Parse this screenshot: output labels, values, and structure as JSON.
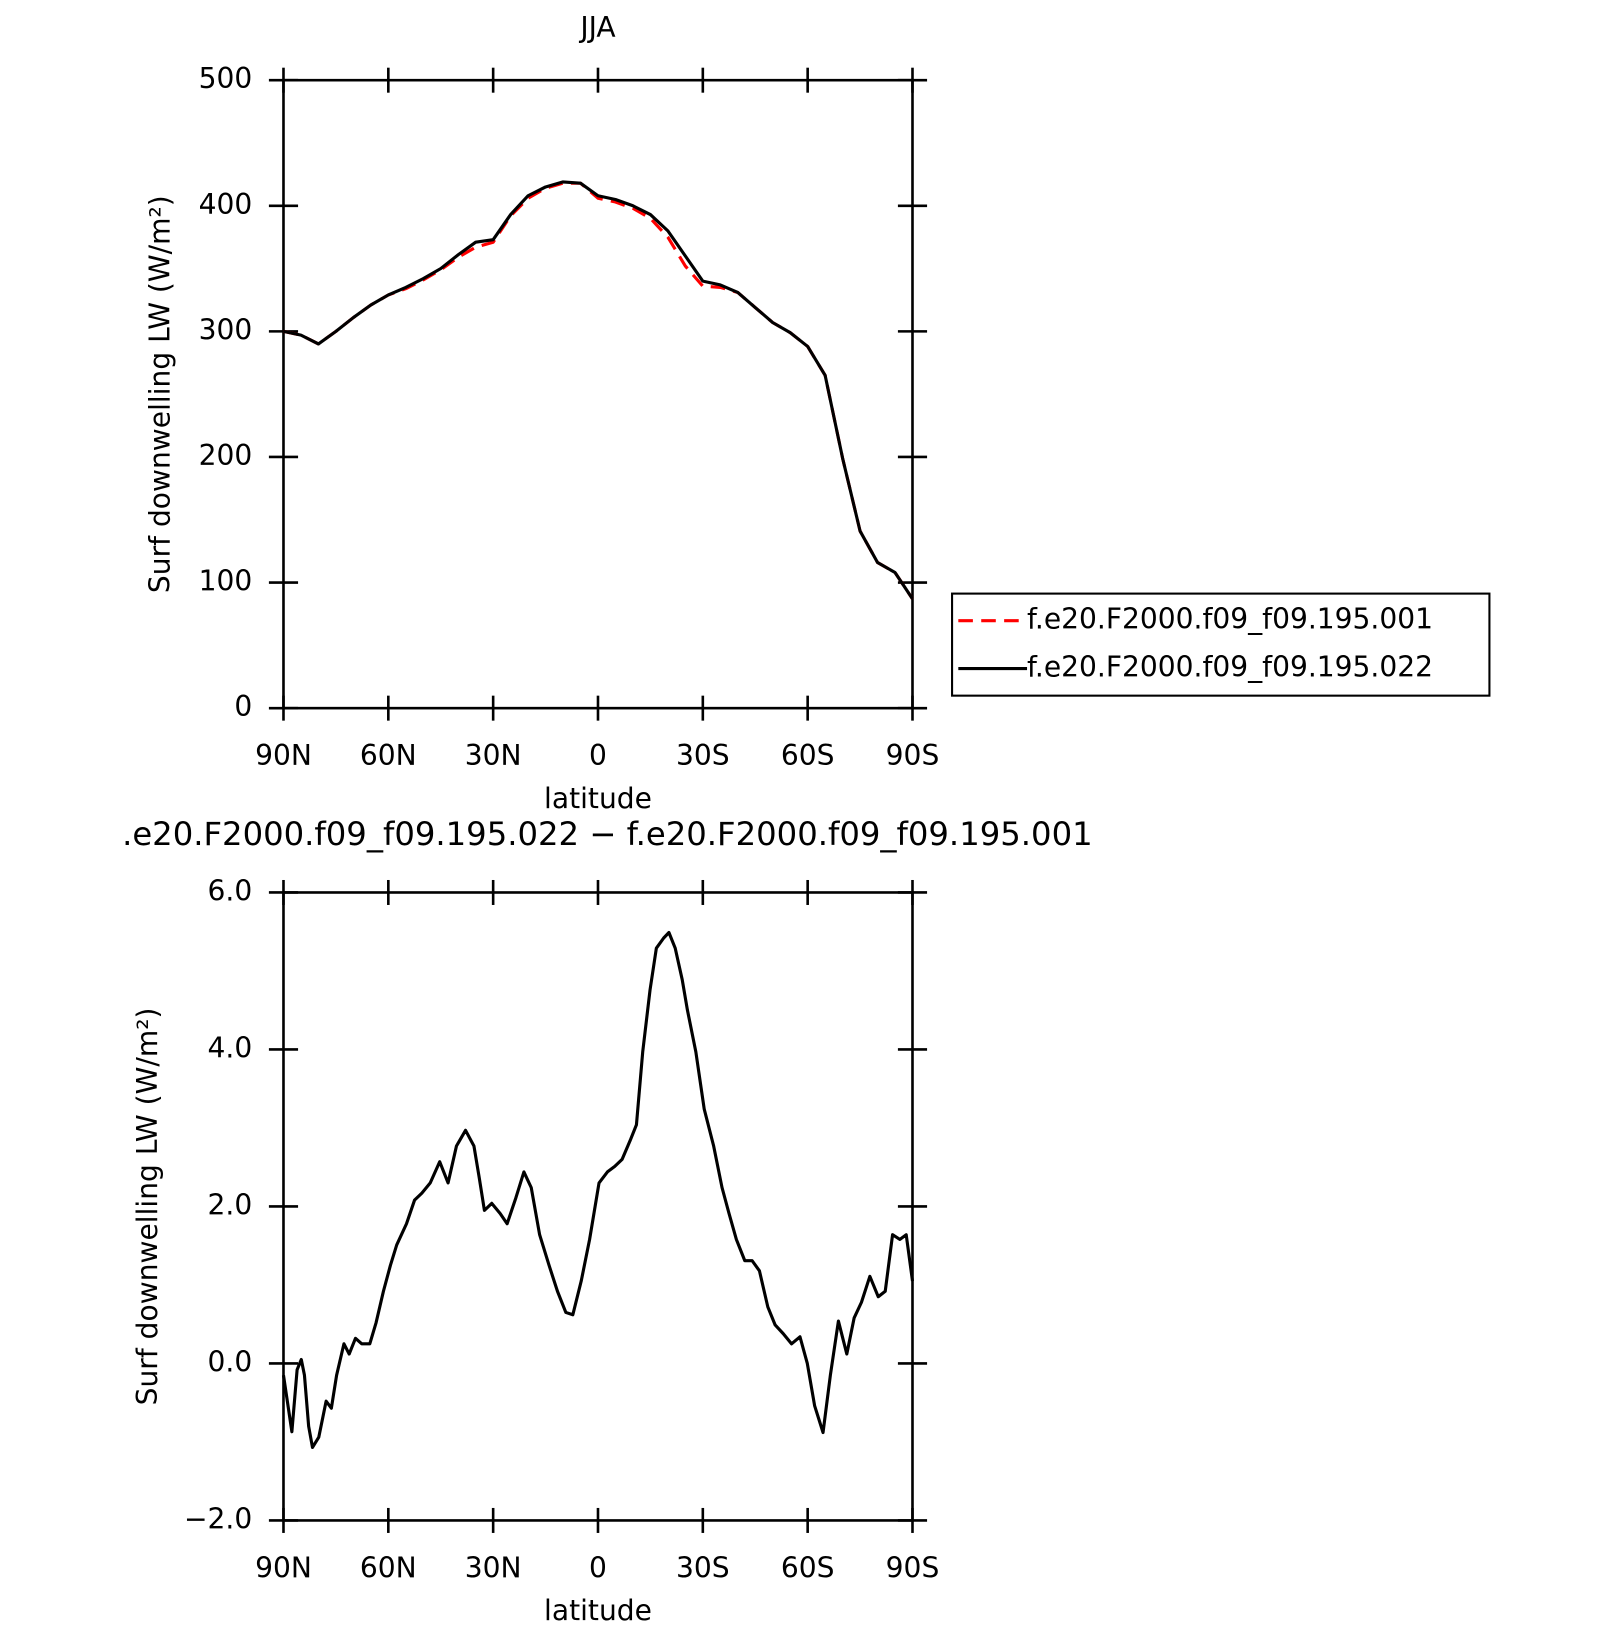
{
  "chart_data": [
    {
      "type": "line",
      "title": "JJA",
      "xlabel": "latitude",
      "ylabel": "Surf downwelling LW (W/m²)",
      "x": [
        90,
        85,
        80,
        75,
        70,
        65,
        60,
        55,
        50,
        45,
        40,
        35,
        30,
        25,
        20,
        15,
        10,
        5,
        0,
        -5,
        -10,
        -15,
        -20,
        -25,
        -30,
        -35,
        -40,
        -45,
        -50,
        -55,
        -60,
        -65,
        -70,
        -75,
        -80,
        -85,
        -90
      ],
      "series": [
        {
          "name": "f.e20.F2000.f09_f09.195.001",
          "color": "#ff0000",
          "dash": "dashed",
          "values": [
            300,
            297,
            290,
            300,
            311,
            321,
            329,
            334,
            341,
            349,
            359,
            367,
            371,
            392,
            406,
            414,
            418,
            418,
            406,
            403,
            398,
            390,
            375,
            352,
            336,
            335,
            331,
            319,
            307,
            299,
            288,
            265,
            199,
            141,
            116,
            108,
            87
          ]
        },
        {
          "name": "f.e20.F2000.f09_f09.195.022",
          "color": "#000000",
          "dash": "solid",
          "values": [
            300,
            297,
            290,
            300,
            311,
            321,
            329,
            335,
            342,
            350,
            361,
            371,
            373,
            393,
            408,
            415,
            419,
            418,
            408,
            405,
            400,
            393,
            380,
            360,
            340,
            337,
            331,
            319,
            307,
            299,
            288,
            265,
            199,
            141,
            116,
            108,
            87
          ]
        }
      ],
      "xlim": [
        90,
        -90
      ],
      "xticks": [
        {
          "value": 90,
          "label": "90N"
        },
        {
          "value": 60,
          "label": "60N"
        },
        {
          "value": 30,
          "label": "30N"
        },
        0,
        {
          "value": -30,
          "label": "30S"
        },
        {
          "value": -60,
          "label": "60S"
        },
        {
          "value": -90,
          "label": "90S"
        }
      ],
      "ylim": [
        0,
        500
      ],
      "yticks": [
        0,
        100,
        200,
        300,
        400,
        500
      ],
      "legend": "outside-right"
    },
    {
      "type": "line",
      "title": ".e20.F2000.f09_f09.195.022 − f.e20.F2000.f09_f09.195.001",
      "xlabel": "latitude",
      "ylabel": "Surf downwelling LW (W/m²)",
      "x": [
        90,
        87.6,
        86.1,
        84.9,
        84.0,
        82.8,
        81.7,
        79.9,
        77.8,
        76.3,
        74.8,
        72.7,
        71.2,
        69.4,
        67.6,
        65.3,
        63.5,
        61.4,
        59.4,
        57.6,
        54.8,
        52.5,
        50.4,
        48.0,
        45.3,
        42.9,
        40.5,
        37.9,
        35.5,
        34.0,
        32.5,
        30.4,
        28.0,
        26.0,
        23.5,
        21.2,
        19.1,
        16.7,
        14.0,
        11.6,
        9.2,
        7.2,
        4.8,
        2.4,
        -0.3,
        -2.7,
        -4.8,
        -6.9,
        -9.2,
        -11.0,
        -12.8,
        -14.9,
        -16.7,
        -18.8,
        -20.3,
        -22.1,
        -24.1,
        -25.6,
        -28.0,
        -30.4,
        -33.1,
        -35.5,
        -37.5,
        -39.6,
        -42.0,
        -44.1,
        -46.2,
        -48.6,
        -50.7,
        -53.0,
        -55.4,
        -57.8,
        -59.9,
        -62.0,
        -64.4,
        -66.5,
        -68.8,
        -71.2,
        -73.3,
        -75.4,
        -77.8,
        -80.2,
        -82.2,
        -84.3,
        -86.4,
        -88.2,
        -90
      ],
      "values": [
        -0.15,
        -0.87,
        -0.08,
        0.05,
        -0.15,
        -0.8,
        -1.07,
        -0.94,
        -0.48,
        -0.57,
        -0.15,
        0.25,
        0.12,
        0.32,
        0.25,
        0.25,
        0.52,
        0.92,
        1.25,
        1.51,
        1.78,
        2.08,
        2.17,
        2.3,
        2.57,
        2.3,
        2.77,
        2.97,
        2.77,
        2.37,
        1.95,
        2.04,
        1.91,
        1.78,
        2.11,
        2.44,
        2.24,
        1.64,
        1.25,
        0.92,
        0.65,
        0.62,
        1.05,
        1.58,
        2.3,
        2.44,
        2.51,
        2.6,
        2.84,
        3.04,
        3.97,
        4.76,
        5.29,
        5.42,
        5.49,
        5.29,
        4.89,
        4.5,
        3.97,
        3.24,
        2.77,
        2.24,
        1.91,
        1.58,
        1.31,
        1.31,
        1.18,
        0.72,
        0.49,
        0.38,
        0.25,
        0.34,
        0,
        -0.54,
        -0.88,
        -0.15,
        0.54,
        0.12,
        0.58,
        0.78,
        1.11,
        0.85,
        0.92,
        1.64,
        1.58,
        1.64,
        1.05
      ],
      "color": "#000000",
      "xlim": [
        90,
        -90
      ],
      "xticks": [
        {
          "value": 90,
          "label": "90N"
        },
        {
          "value": 60,
          "label": "60N"
        },
        {
          "value": 30,
          "label": "30N"
        },
        0,
        {
          "value": -30,
          "label": "30S"
        },
        {
          "value": -60,
          "label": "60S"
        },
        {
          "value": -90,
          "label": "90S"
        }
      ],
      "ylim": [
        -2,
        6
      ],
      "yticks": [
        {
          "value": -2,
          "label": "−2.0"
        },
        {
          "value": 0,
          "label": "0.0"
        },
        {
          "value": 2,
          "label": "2.0"
        },
        {
          "value": 4,
          "label": "4.0"
        },
        {
          "value": 6,
          "label": "6.0"
        }
      ]
    }
  ]
}
